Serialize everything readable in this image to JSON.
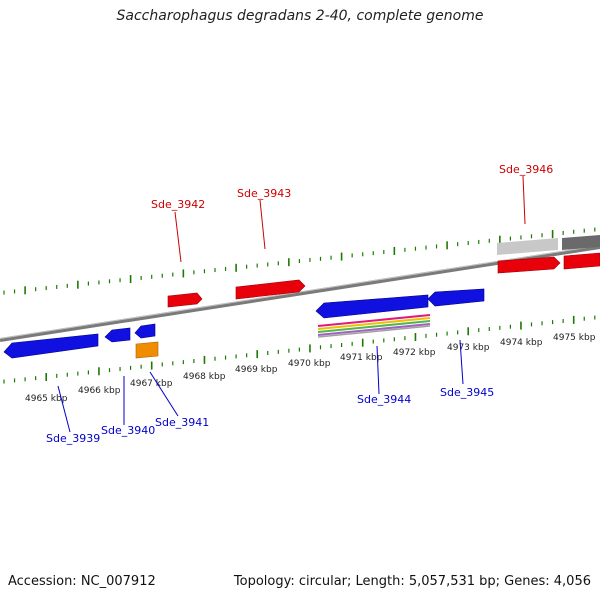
{
  "title": "Saccharophagus degradans 2-40, complete genome",
  "footer": {
    "accession": "Accession: NC_007912",
    "summary": "Topology: circular; Length: 5,057,531 bp; Genes: 4,056"
  },
  "colors": {
    "forward_gene": "#e8000b",
    "reverse_gene": "#1010e0",
    "rna_gene": "#f08c00",
    "forward_label": "#cc0000",
    "reverse_label": "#0000cc",
    "tick": "#1c7a00",
    "backbone": "#7a7a7a"
  },
  "scale": {
    "unit": "kbp",
    "upper_labels": [
      "4971 kbp",
      "4972 kbp",
      "4973 kbp",
      "4974 kbp",
      "4975 kbp"
    ],
    "lower_labels": [
      "4965 kbp",
      "4966 kbp",
      "4967 kbp",
      "4968 kbp",
      "4969 kbp",
      "4970 kbp"
    ]
  },
  "genes": {
    "forward": [
      "Sde_3942",
      "Sde_3943",
      "Sde_3946"
    ],
    "reverse": [
      "Sde_3939",
      "Sde_3940",
      "Sde_3941",
      "Sde_3944",
      "Sde_3945"
    ]
  }
}
